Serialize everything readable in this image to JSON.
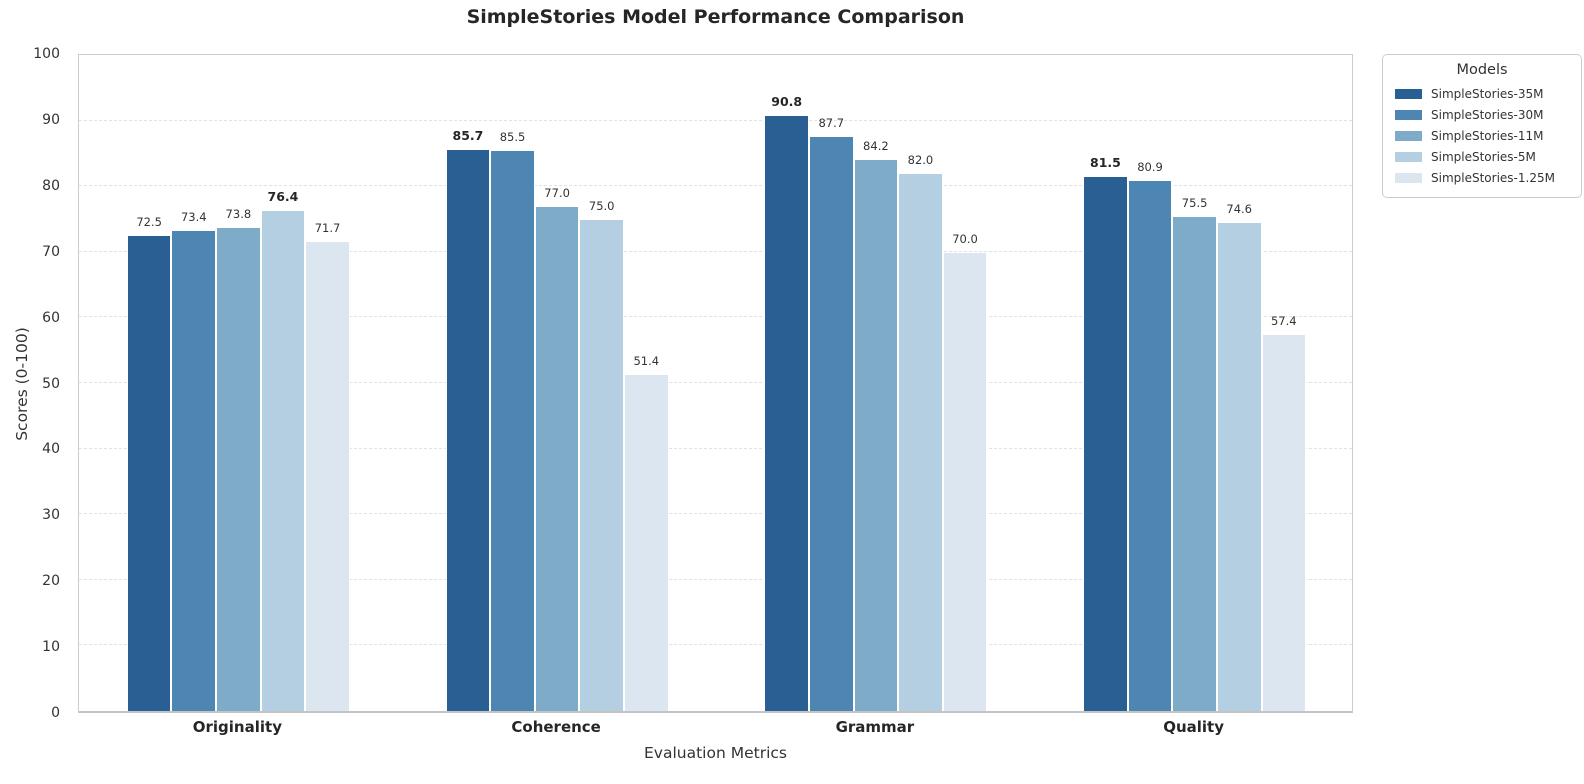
{
  "chart_data": {
    "type": "bar",
    "title": "SimpleStories Model Performance Comparison",
    "xlabel": "Evaluation Metrics",
    "ylabel": "Scores (0-100)",
    "ylim": [
      0,
      100
    ],
    "yticks": [
      0,
      10,
      20,
      30,
      40,
      50,
      60,
      70,
      80,
      90,
      100
    ],
    "grid": "horizontal-dashed",
    "bar_labels": true,
    "bold_max_in_group": true,
    "legend_title": "Models",
    "legend_position": "outside-upper-right",
    "categories": [
      "Originality",
      "Coherence",
      "Grammar",
      "Quality"
    ],
    "series": [
      {
        "name": "SimpleStories-35M",
        "color": "#2a5f93",
        "values": [
          72.5,
          85.7,
          90.8,
          81.5
        ]
      },
      {
        "name": "SimpleStories-30M",
        "color": "#4d86b3",
        "values": [
          73.4,
          85.5,
          87.7,
          80.9
        ]
      },
      {
        "name": "SimpleStories-11M",
        "color": "#7dabc8",
        "values": [
          73.8,
          77.0,
          84.2,
          75.5
        ]
      },
      {
        "name": "SimpleStories-5M",
        "color": "#b5cfe2",
        "values": [
          76.4,
          75.0,
          82.0,
          74.6
        ]
      },
      {
        "name": "SimpleStories-1.25M",
        "color": "#dce6f1",
        "values": [
          71.7,
          51.4,
          70.0,
          57.4
        ]
      }
    ]
  }
}
